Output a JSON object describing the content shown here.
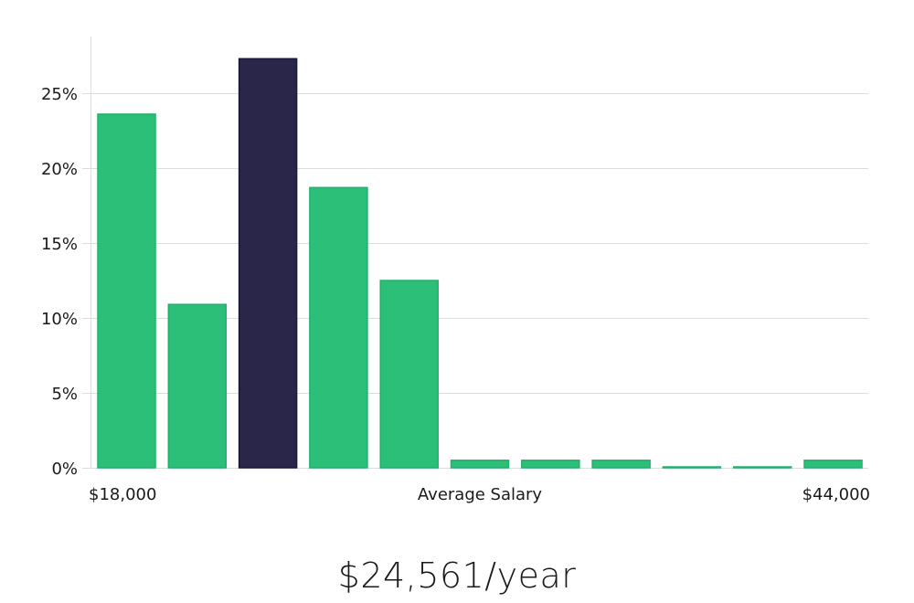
{
  "chart_data": {
    "type": "bar",
    "title": "",
    "xlabel": "Average Salary",
    "ylabel": "",
    "x_min_label": "$18,000",
    "x_max_label": "$44,000",
    "ylim": [
      0,
      29
    ],
    "y_ticks": [
      0,
      5,
      10,
      15,
      20,
      25
    ],
    "y_tick_labels": [
      "0%",
      "5%",
      "10%",
      "15%",
      "20%",
      "25%"
    ],
    "grid": true,
    "values": [
      23.6,
      10.9,
      27.3,
      18.7,
      12.5,
      0.5,
      0.5,
      0.5,
      0.05,
      0.05,
      0.5
    ],
    "highlight_index": 2,
    "colors": {
      "bar": "#2bbf78",
      "highlight": "#29264a",
      "grid": "#dddddd",
      "axis": "#cccccc"
    }
  },
  "salary": {
    "text": "$24,561/year"
  }
}
